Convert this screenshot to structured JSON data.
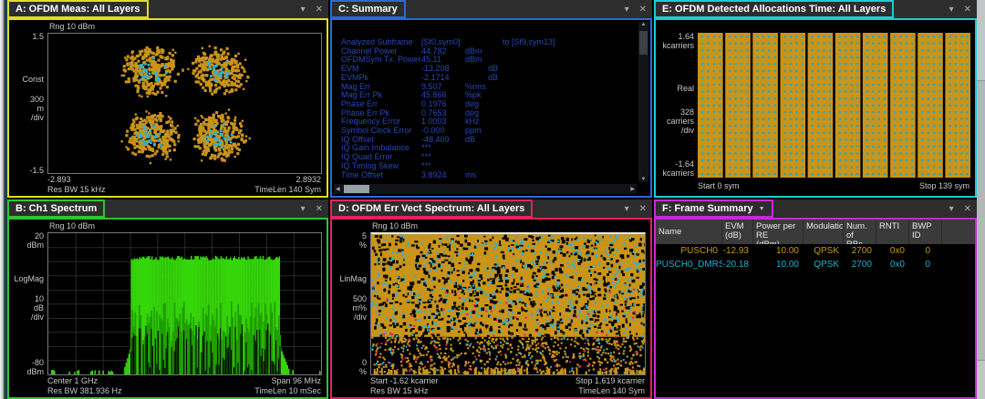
{
  "icons": {
    "chevron": "▾",
    "close": "✕",
    "dropdown": "▼",
    "up": "▲",
    "down": "▼",
    "left": "◀",
    "right": "▶"
  },
  "colors": {
    "orange": "#c8941a",
    "cyan": "#2ab2d8",
    "dotCyan": "#24a8c4",
    "green": "#35d60a",
    "darkGreen": "#1e9c00",
    "red": "#e22458",
    "summaryBlue": "#2848b4"
  },
  "panels": {
    "a": {
      "title": "A: OFDM Meas: All Layers",
      "accent": "#dede21",
      "rng": "Rng 10 dBm",
      "y_top": "1.5",
      "y_fmt": "Const",
      "y_scale": "300\nm\n/div",
      "y_bottom": "-1.5",
      "x_left": "-2.893",
      "x_right": "2.8932",
      "res_bw": "Res BW 15 kHz",
      "time_len": "TimeLen 140 Sym"
    },
    "b": {
      "title": "B: Ch1 Spectrum",
      "accent": "#2fc52f",
      "rng": "Rng 10 dBm",
      "y_top": "20\ndBm",
      "y_fmt": "LogMag",
      "y_scale": "10\ndB\n/div",
      "y_bottom": "-80\ndBm",
      "x_left": "Center 1 GHz",
      "x_right": "Span 96 MHz",
      "res_bw": "Res BW 381.936  Hz",
      "time_len": "TimeLen 10 mSec"
    },
    "c": {
      "title": "C: Summary",
      "accent": "#2a6ad8",
      "rows": [
        {
          "label": "Analyzed  Subframe",
          "value": "[Sf0,sym0]",
          "unit": "to  [Sf9,sym13]",
          "gap": 41
        },
        {
          "label": "Channel  Power",
          "value": "44.782",
          "unit": "dBm",
          "gap": 0
        },
        {
          "label": "OFDMSym  Tx.  Power",
          "value": "45.11",
          "unit": "dBm",
          "gap": 0
        },
        {
          "label": "EVM",
          "value": "-13.208",
          "unit": "dB",
          "gap": 25
        },
        {
          "label": "EVMPk",
          "value": "-2.1714",
          "unit": "dB",
          "gap": 25
        },
        {
          "label": "Mag Err",
          "value": "9.507",
          "unit": "%rms",
          "gap": 0
        },
        {
          "label": "Mag Err  Pk",
          "value": "45.866",
          "unit": "%pk",
          "gap": 0
        },
        {
          "label": "Phase  Err",
          "value": "0.1976",
          "unit": "deg",
          "gap": 0
        },
        {
          "label": "Phase  Err  Pk",
          "value": "0.7653",
          "unit": "deg",
          "gap": 0
        },
        {
          "label": "Frequency  Error",
          "value": "1.0003",
          "unit": "kHz",
          "gap": 0
        },
        {
          "label": "Symbol  Clock  Error",
          "value": "-0.000",
          "unit": "ppm",
          "gap": 0
        },
        {
          "label": "IQ  Offset",
          "value": "-48.409",
          "unit": "dB",
          "gap": 0
        },
        {
          "label": "IQ  Gain  Imbalance",
          "value": "***",
          "unit": "",
          "gap": 0
        },
        {
          "label": "IQ  Quad  Error",
          "value": "***",
          "unit": "",
          "gap": 0
        },
        {
          "label": "IQ  Timing  Skew",
          "value": "***",
          "unit": "",
          "gap": 0
        },
        {
          "label": "Time  Offset",
          "value": "3.8924",
          "unit": "ms",
          "gap": 0
        }
      ]
    },
    "d": {
      "title": "D: OFDM Err Vect Spectrum: All Layers",
      "accent": "#e0245e",
      "rng": "Rng 10 dBm",
      "y_top": "5\n%",
      "y_fmt": "LinMag",
      "y_scale": "500\nm%\n/div",
      "y_bottom": "0\n%",
      "x_left": "Start -1.62 kcarrier",
      "x_right": "Stop 1.619 kcarrier",
      "res_bw": "Res BW 15 kHz",
      "time_len": "TimeLen 140  Sym"
    },
    "e": {
      "title": "E: OFDM Detected Allocations Time: All Layers",
      "accent": "#19cdd4",
      "y_top": "1.64\nkcarriers",
      "y_fmt": "Real",
      "y_scale": "328\ncarriers\n/div",
      "y_bottom": "-1.64\nkcarriers",
      "x_left": "Start 0  sym",
      "x_right": "Stop 139  sym"
    },
    "f": {
      "title": "F: Frame Summary",
      "accent": "#c62ad4",
      "columns": [
        "Name",
        "EVM\n(dB)",
        "Power per RE\n(dBm)",
        "Modulation",
        "Num. of\nRBs",
        "RNTI",
        "BWP ID"
      ],
      "rows": [
        {
          "name": "PUSCH0",
          "evm": "-12.93",
          "power": "10.00",
          "modulation": "QPSK",
          "rbs": "2700",
          "rnti": "0x0",
          "bwp": "0",
          "color": "#c8961e"
        },
        {
          "name": "PUSCH0_DMRS",
          "evm": "-20.18",
          "power": "10.00",
          "modulation": "QPSK",
          "rbs": "2700",
          "rnti": "0x0",
          "bwp": "0",
          "color": "#1fb0d2"
        }
      ]
    }
  }
}
